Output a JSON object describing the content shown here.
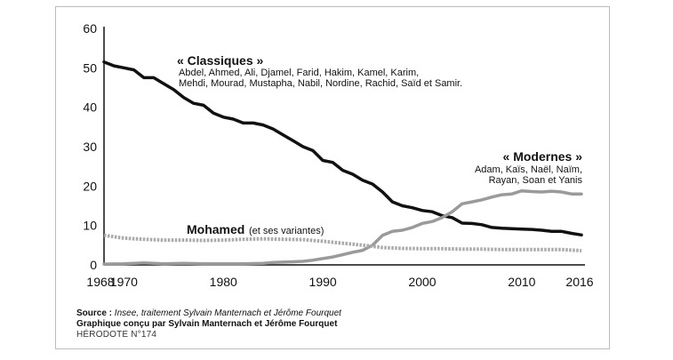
{
  "chart_data": {
    "type": "line",
    "xlim": [
      1968,
      2016
    ],
    "ylim": [
      0,
      60
    ],
    "y_ticks": [
      0,
      10,
      20,
      30,
      40,
      50,
      60
    ],
    "x_ticks": [
      1968,
      1970,
      1980,
      1990,
      2000,
      2010,
      2016
    ],
    "grid": false,
    "series": [
      {
        "name": "« Classiques »",
        "color": "#111111",
        "style": "solid",
        "x": [
          1968,
          1969,
          1970,
          1971,
          1972,
          1973,
          1974,
          1975,
          1976,
          1977,
          1978,
          1979,
          1980,
          1981,
          1982,
          1983,
          1984,
          1985,
          1986,
          1987,
          1988,
          1989,
          1990,
          1991,
          1992,
          1993,
          1994,
          1995,
          1996,
          1997,
          1998,
          1999,
          2000,
          2001,
          2002,
          2003,
          2004,
          2005,
          2006,
          2007,
          2008,
          2009,
          2010,
          2011,
          2012,
          2013,
          2014,
          2015,
          2016
        ],
        "values": [
          51.5,
          50.5,
          50,
          49.5,
          47.5,
          47.5,
          46,
          44.5,
          42.5,
          41,
          40.5,
          38.5,
          37.5,
          37,
          36,
          36,
          35.5,
          34.5,
          33,
          31.5,
          30,
          29,
          26.5,
          26,
          24,
          23,
          21.5,
          20.5,
          18.5,
          16,
          15,
          14.5,
          13.8,
          13.5,
          12.5,
          12,
          10.6,
          10.5,
          10.2,
          9.5,
          9.3,
          9.2,
          9.1,
          9,
          8.8,
          8.5,
          8.5,
          8,
          7.6
        ]
      },
      {
        "name": "« Modernes »",
        "color": "#9a9a9a",
        "style": "solid",
        "x": [
          1968,
          1970,
          1972,
          1974,
          1976,
          1978,
          1980,
          1982,
          1984,
          1985,
          1986,
          1987,
          1988,
          1989,
          1990,
          1991,
          1992,
          1993,
          1994,
          1995,
          1996,
          1997,
          1998,
          1999,
          2000,
          2001,
          2002,
          2003,
          2004,
          2005,
          2006,
          2007,
          2008,
          2009,
          2010,
          2011,
          2012,
          2013,
          2014,
          2015,
          2016
        ],
        "values": [
          0.2,
          0.3,
          0.5,
          0.3,
          0.4,
          0.3,
          0.3,
          0.3,
          0.4,
          0.6,
          0.7,
          0.8,
          0.9,
          1.2,
          1.6,
          2,
          2.6,
          3.2,
          3.7,
          5,
          7.5,
          8.5,
          8.8,
          9.5,
          10.5,
          11,
          12,
          13.5,
          15.5,
          16,
          16.5,
          17.2,
          17.8,
          18,
          18.8,
          18.6,
          18.5,
          18.7,
          18.5,
          18,
          18
        ]
      },
      {
        "name": "Mohamed",
        "color": "#aaaaaa",
        "style": "dotted",
        "x": [
          1968,
          1970,
          1972,
          1974,
          1976,
          1978,
          1980,
          1982,
          1984,
          1986,
          1988,
          1990,
          1992,
          1994,
          1996,
          1998,
          2000,
          2002,
          2004,
          2006,
          2008,
          2010,
          2012,
          2014,
          2016
        ],
        "values": [
          7.5,
          6.8,
          6.5,
          6.3,
          6.3,
          6.2,
          6.3,
          6.5,
          6.6,
          6.5,
          6.4,
          6.0,
          5.5,
          5.0,
          4.4,
          4.2,
          4.1,
          4.1,
          4.0,
          4.0,
          3.9,
          3.9,
          3.9,
          3.9,
          3.6
        ]
      }
    ],
    "annotations": {
      "classiques_title": "« Classiques »",
      "classiques_line1": "Abdel, Ahmed, Ali, Djamel, Farid, Hakim, Kamel, Karim,",
      "classiques_line2": "Mehdi, Mourad, Mustapha, Nabil, Nordine, Rachid, Saïd et Samir.",
      "modernes_title": "« Modernes »",
      "modernes_line1": "Adam, Kaïs, Naël, Naïm,",
      "modernes_line2": "Rayan, Soan et Yanis",
      "mohamed_title": "Mohamed",
      "mohamed_note": "(et ses variantes)"
    }
  },
  "footer": {
    "source_label": "Source :",
    "source_text": "Insee, traitement Sylvain Manternach et Jérôme Fourquet",
    "credit": "Graphique conçu par Sylvain Manternach et Jérôme Fourquet",
    "publication": "HÉRODOTE N°174"
  }
}
